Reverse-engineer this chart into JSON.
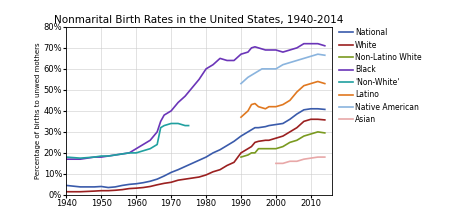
{
  "title": "Nonmarital Birth Rates in the United States, 1940-2014",
  "ylabel": "Percentage of births to unwed mothers",
  "ylim": [
    0,
    80
  ],
  "yticks": [
    0,
    10,
    20,
    30,
    40,
    50,
    60,
    70,
    80
  ],
  "xlim": [
    1940,
    2016
  ],
  "xticks": [
    1940,
    1950,
    1960,
    1970,
    1980,
    1990,
    2000,
    2010
  ],
  "series": {
    "National": {
      "color": "#3a5bab",
      "data": [
        [
          1940,
          4.5
        ],
        [
          1944,
          3.8
        ],
        [
          1948,
          3.8
        ],
        [
          1950,
          4
        ],
        [
          1952,
          3.5
        ],
        [
          1954,
          3.8
        ],
        [
          1956,
          4.5
        ],
        [
          1958,
          5
        ],
        [
          1960,
          5.3
        ],
        [
          1962,
          5.8
        ],
        [
          1964,
          6.5
        ],
        [
          1966,
          7.5
        ],
        [
          1968,
          9
        ],
        [
          1970,
          10.7
        ],
        [
          1972,
          12
        ],
        [
          1974,
          13.5
        ],
        [
          1976,
          15
        ],
        [
          1978,
          16.5
        ],
        [
          1980,
          18
        ],
        [
          1982,
          20
        ],
        [
          1984,
          21.5
        ],
        [
          1986,
          23.5
        ],
        [
          1988,
          25.5
        ],
        [
          1990,
          28
        ],
        [
          1992,
          30
        ],
        [
          1993,
          31
        ],
        [
          1994,
          32
        ],
        [
          1995,
          32
        ],
        [
          1997,
          32.5
        ],
        [
          1998,
          33
        ],
        [
          2000,
          33.5
        ],
        [
          2002,
          34
        ],
        [
          2004,
          36
        ],
        [
          2006,
          38.5
        ],
        [
          2008,
          40.5
        ],
        [
          2010,
          41
        ],
        [
          2012,
          41
        ],
        [
          2014,
          40.7
        ]
      ]
    },
    "White": {
      "color": "#9b2020",
      "data": [
        [
          1940,
          1.5
        ],
        [
          1944,
          1.5
        ],
        [
          1948,
          1.8
        ],
        [
          1950,
          2
        ],
        [
          1952,
          2
        ],
        [
          1954,
          2.2
        ],
        [
          1956,
          2.5
        ],
        [
          1958,
          3
        ],
        [
          1960,
          3.2
        ],
        [
          1962,
          3.5
        ],
        [
          1964,
          4
        ],
        [
          1966,
          4.8
        ],
        [
          1968,
          5.5
        ],
        [
          1970,
          6
        ],
        [
          1972,
          7
        ],
        [
          1974,
          7.5
        ],
        [
          1976,
          8
        ],
        [
          1978,
          8.5
        ],
        [
          1980,
          9.5
        ],
        [
          1982,
          11
        ],
        [
          1984,
          12
        ],
        [
          1986,
          14
        ],
        [
          1988,
          15.5
        ],
        [
          1990,
          20
        ],
        [
          1992,
          22
        ],
        [
          1993,
          23
        ],
        [
          1994,
          25
        ],
        [
          1995,
          25.5
        ],
        [
          1997,
          26
        ],
        [
          1998,
          26
        ],
        [
          2000,
          27
        ],
        [
          2002,
          28
        ],
        [
          2004,
          30
        ],
        [
          2006,
          32
        ],
        [
          2008,
          35
        ],
        [
          2010,
          36
        ],
        [
          2012,
          36
        ],
        [
          2014,
          35.7
        ]
      ]
    },
    "Non-Latino White": {
      "color": "#7a9a20",
      "data": [
        [
          1990,
          18
        ],
        [
          1992,
          19
        ],
        [
          1993,
          20
        ],
        [
          1994,
          20
        ],
        [
          1995,
          22
        ],
        [
          1997,
          22
        ],
        [
          1998,
          22
        ],
        [
          2000,
          22
        ],
        [
          2002,
          23
        ],
        [
          2004,
          25
        ],
        [
          2006,
          26
        ],
        [
          2008,
          28
        ],
        [
          2010,
          29
        ],
        [
          2012,
          30
        ],
        [
          2014,
          29.5
        ]
      ]
    },
    "Black": {
      "color": "#6b35b8",
      "data": [
        [
          1940,
          17
        ],
        [
          1944,
          17
        ],
        [
          1948,
          18
        ],
        [
          1950,
          18
        ],
        [
          1952,
          18.5
        ],
        [
          1954,
          19
        ],
        [
          1956,
          19.5
        ],
        [
          1958,
          20
        ],
        [
          1960,
          22
        ],
        [
          1962,
          24
        ],
        [
          1964,
          26
        ],
        [
          1966,
          30
        ],
        [
          1967,
          35
        ],
        [
          1968,
          38
        ],
        [
          1970,
          40
        ],
        [
          1972,
          44
        ],
        [
          1974,
          47
        ],
        [
          1976,
          51
        ],
        [
          1978,
          55
        ],
        [
          1980,
          60
        ],
        [
          1982,
          62
        ],
        [
          1984,
          65
        ],
        [
          1986,
          64
        ],
        [
          1988,
          64
        ],
        [
          1990,
          67
        ],
        [
          1992,
          68
        ],
        [
          1993,
          70
        ],
        [
          1994,
          70.5
        ],
        [
          1995,
          70
        ],
        [
          1997,
          69
        ],
        [
          1998,
          69
        ],
        [
          2000,
          69
        ],
        [
          2002,
          68
        ],
        [
          2004,
          69
        ],
        [
          2006,
          70
        ],
        [
          2008,
          72
        ],
        [
          2010,
          72
        ],
        [
          2012,
          72
        ],
        [
          2014,
          71
        ]
      ]
    },
    "Non-White": {
      "color": "#20a0a0",
      "data": [
        [
          1940,
          18
        ],
        [
          1944,
          17.5
        ],
        [
          1948,
          18
        ],
        [
          1950,
          18.5
        ],
        [
          1952,
          18.5
        ],
        [
          1954,
          19
        ],
        [
          1956,
          19.5
        ],
        [
          1958,
          20
        ],
        [
          1960,
          20
        ],
        [
          1962,
          21
        ],
        [
          1964,
          22
        ],
        [
          1966,
          24
        ],
        [
          1967,
          32
        ],
        [
          1968,
          33
        ],
        [
          1970,
          34
        ],
        [
          1972,
          34
        ],
        [
          1974,
          33
        ],
        [
          1975,
          33
        ]
      ]
    },
    "Latino": {
      "color": "#e07820",
      "data": [
        [
          1990,
          37
        ],
        [
          1992,
          40
        ],
        [
          1993,
          43
        ],
        [
          1994,
          43.5
        ],
        [
          1995,
          42
        ],
        [
          1997,
          41
        ],
        [
          1998,
          42
        ],
        [
          2000,
          42
        ],
        [
          2002,
          43
        ],
        [
          2004,
          45
        ],
        [
          2006,
          49
        ],
        [
          2008,
          52
        ],
        [
          2010,
          53
        ],
        [
          2012,
          54
        ],
        [
          2014,
          53
        ]
      ]
    },
    "Native American": {
      "color": "#8ab4de",
      "data": [
        [
          1990,
          53
        ],
        [
          1992,
          56
        ],
        [
          1994,
          58
        ],
        [
          1996,
          60
        ],
        [
          1998,
          60
        ],
        [
          2000,
          60
        ],
        [
          2002,
          62
        ],
        [
          2004,
          63
        ],
        [
          2006,
          64
        ],
        [
          2008,
          65
        ],
        [
          2010,
          66
        ],
        [
          2012,
          67
        ],
        [
          2014,
          66.5
        ]
      ]
    },
    "Asian": {
      "color": "#e8a8a8",
      "data": [
        [
          2000,
          15
        ],
        [
          2002,
          15
        ],
        [
          2004,
          16
        ],
        [
          2006,
          16
        ],
        [
          2008,
          17
        ],
        [
          2010,
          17.5
        ],
        [
          2012,
          18
        ],
        [
          2014,
          18
        ]
      ]
    }
  },
  "legend_order": [
    "National",
    "White",
    "Non-Latino White",
    "Black",
    "Non-White",
    "Latino",
    "Native American",
    "Asian"
  ],
  "legend_labels": {
    "Non-White": "'Non-White'"
  }
}
